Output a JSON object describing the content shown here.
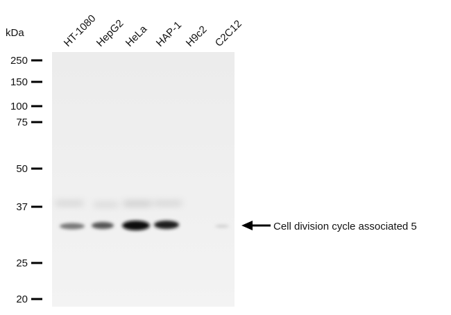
{
  "unit_label": "kDa",
  "markers": [
    250,
    150,
    100,
    75,
    50,
    37,
    25,
    20
  ],
  "lanes": [
    "HT-1080",
    "HepG2",
    "HeLa",
    "HAP-1",
    "H9c2",
    "C2C12"
  ],
  "annotation": "Cell division cycle associated 5"
}
